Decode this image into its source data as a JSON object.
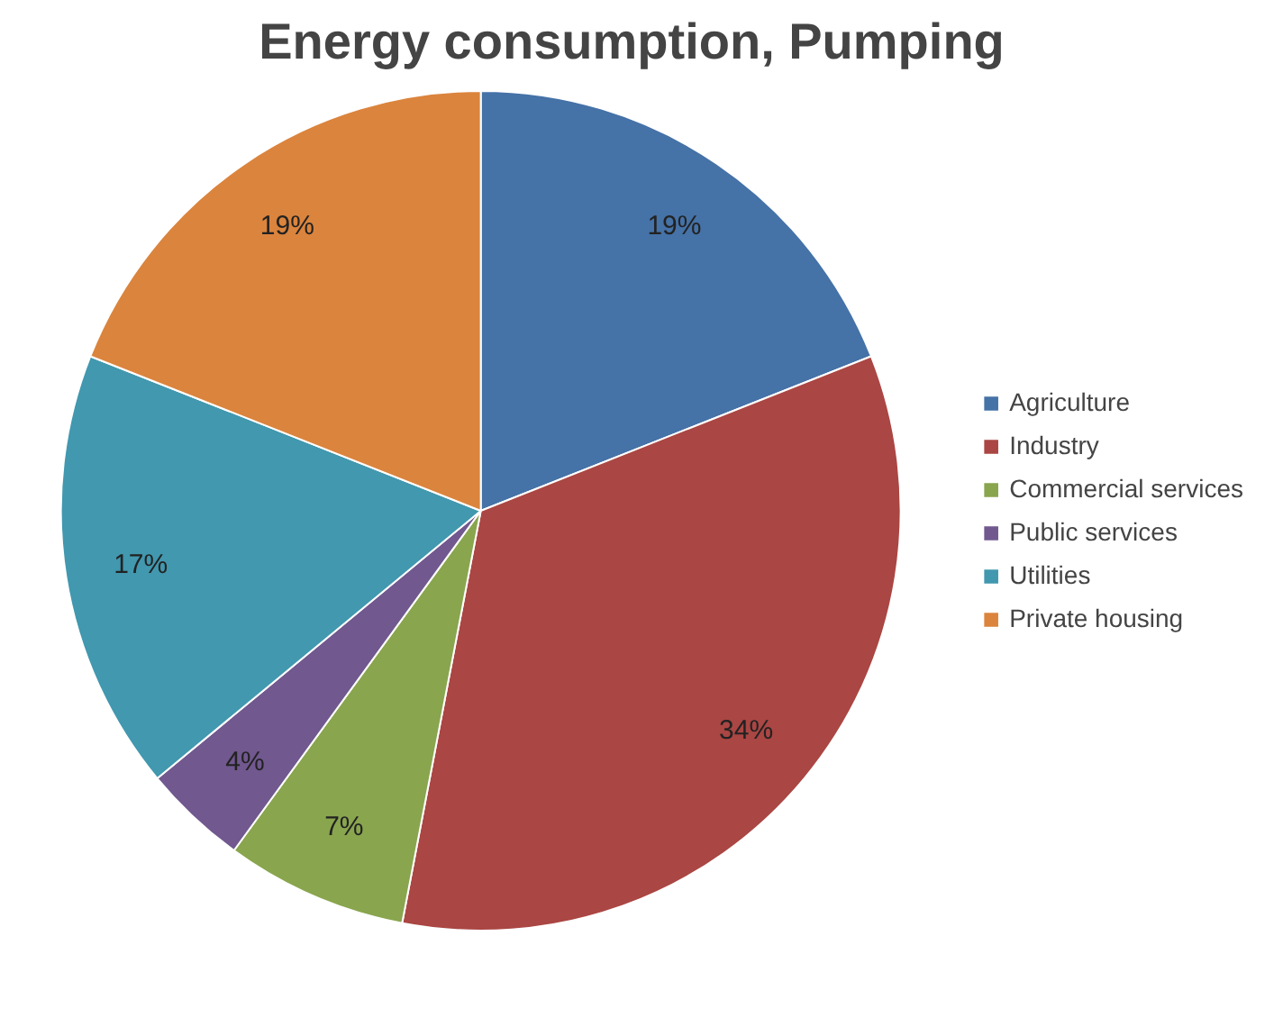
{
  "chart_data": {
    "type": "pie",
    "title": "Energy consumption, Pumping",
    "categories": [
      "Agriculture",
      "Industry",
      "Commercial services",
      "Public services",
      "Utilities",
      "Private housing"
    ],
    "values": [
      19,
      34,
      7,
      4,
      17,
      19
    ],
    "colors": [
      "#4572a7",
      "#aa4643",
      "#89a54e",
      "#71588f",
      "#4198af",
      "#db843d"
    ],
    "value_labels": [
      "19%",
      "34%",
      "7%",
      "4%",
      "17%",
      "19%"
    ],
    "legend": "right"
  }
}
